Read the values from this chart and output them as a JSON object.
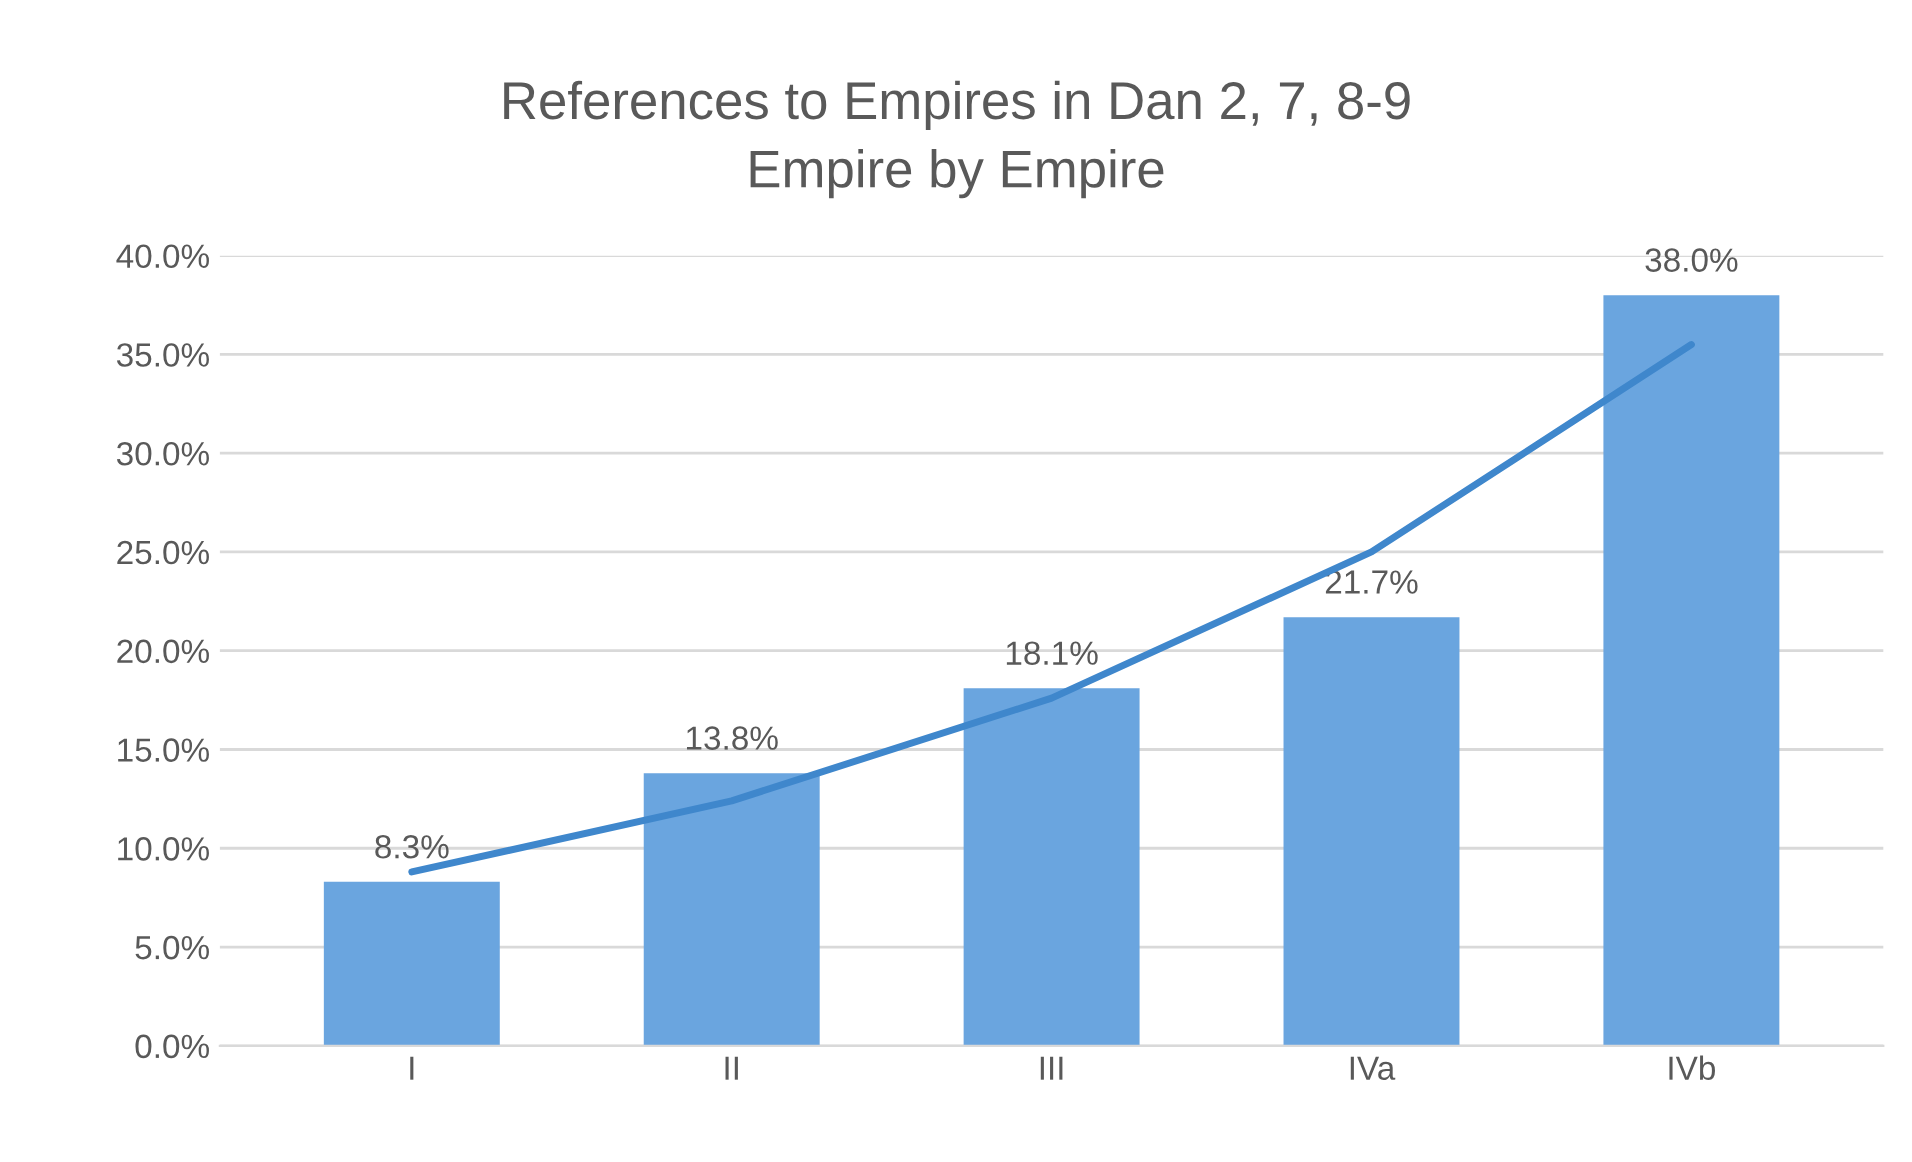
{
  "chart_data": {
    "type": "bar",
    "title": "References to Empires in Dan 2, 7, 8-9\nEmpire by Empire",
    "categories": [
      "I",
      "II",
      "III",
      "IVa",
      "IVb"
    ],
    "series": [
      {
        "color": "#6aa5df",
        "values": [
          8.3,
          13.8,
          18.1,
          21.7,
          38.0
        ],
        "value_labels": [
          "8.3%",
          "13.8%",
          "18.1%",
          "21.7%",
          "38.0%"
        ]
      },
      {
        "type": "line",
        "color": "#3f87cc",
        "x": [
          "I",
          "II",
          "III",
          "IVa",
          "IVb"
        ],
        "values": [
          8.8,
          12.4,
          17.6,
          25.0,
          35.5
        ]
      }
    ],
    "ylim": [
      0,
      40
    ],
    "yticks": [
      {
        "value": 0,
        "label": "0.0%"
      },
      {
        "value": 5,
        "label": "5.0%"
      },
      {
        "value": 10,
        "label": "10.0%"
      },
      {
        "value": 15,
        "label": "15.0%"
      },
      {
        "value": 20,
        "label": "20.0%"
      },
      {
        "value": 25,
        "label": "25.0%"
      },
      {
        "value": 30,
        "label": "30.0%"
      },
      {
        "value": 35,
        "label": "35.0%"
      },
      {
        "value": 40,
        "label": "40.0%"
      }
    ],
    "grid": "y",
    "marker": "none",
    "line_style": "solid"
  }
}
